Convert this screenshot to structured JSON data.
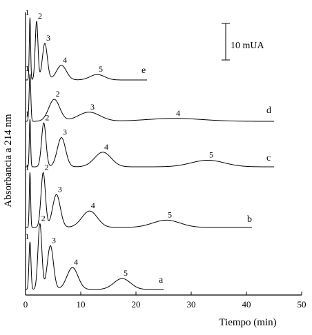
{
  "chart_data": {
    "type": "line",
    "title": "",
    "xlabel": "Tiempo (min)",
    "ylabel": "Absorbancia a 214 nm",
    "xlim": [
      0,
      50
    ],
    "xticks": [
      0,
      10,
      20,
      30,
      40,
      50
    ],
    "grid": false,
    "scale_bar": {
      "label": "10 mUA",
      "value_mAU": 10
    },
    "series": [
      {
        "name": "a",
        "end_time": 25,
        "peaks": [
          {
            "label": "1",
            "time": 0.8,
            "height_mAU": 13,
            "width": 0.18
          },
          {
            "label": "2",
            "time": 2.6,
            "height_mAU": 18,
            "width": 0.35
          },
          {
            "label": "3",
            "time": 4.5,
            "height_mAU": 12,
            "width": 0.55
          },
          {
            "label": "4",
            "time": 8.5,
            "height_mAU": 6,
            "width": 1.0
          },
          {
            "label": "5",
            "time": 17.5,
            "height_mAU": 3,
            "width": 1.5
          }
        ]
      },
      {
        "name": "b",
        "end_time": 41,
        "peaks": [
          {
            "label": "1",
            "time": 0.8,
            "height_mAU": 15,
            "width": 0.12
          },
          {
            "label": "2",
            "time": 3.2,
            "height_mAU": 15,
            "width": 0.4
          },
          {
            "label": "3",
            "time": 5.6,
            "height_mAU": 9,
            "width": 0.7
          },
          {
            "label": "4",
            "time": 11.6,
            "height_mAU": 4.5,
            "width": 1.4
          },
          {
            "label": "5",
            "time": 25.5,
            "height_mAU": 2,
            "width": 2.5
          }
        ]
      },
      {
        "name": "c",
        "end_time": 45,
        "peaks": [
          {
            "label": "1",
            "time": 0.8,
            "height_mAU": 13,
            "width": 0.12
          },
          {
            "label": "2",
            "time": 3.3,
            "height_mAU": 12,
            "width": 0.4
          },
          {
            "label": "3",
            "time": 6.5,
            "height_mAU": 8,
            "width": 0.75
          },
          {
            "label": "4",
            "time": 14.0,
            "height_mAU": 4,
            "width": 1.5
          },
          {
            "label": "5",
            "time": 33.0,
            "height_mAU": 1.8,
            "width": 3.0
          }
        ]
      },
      {
        "name": "d",
        "end_time": 45,
        "peaks": [
          {
            "label": "1",
            "time": 0.8,
            "height_mAU": 13,
            "width": 0.15
          },
          {
            "label": "2",
            "time": 5.2,
            "height_mAU": 6,
            "width": 1.0
          },
          {
            "label": "3",
            "time": 11.5,
            "height_mAU": 2.5,
            "width": 2.0
          },
          {
            "label": "4",
            "time": 27.0,
            "height_mAU": 0.8,
            "width": 5.0
          }
        ]
      },
      {
        "name": "e",
        "end_time": 22,
        "peaks": [
          {
            "label": "1",
            "time": 0.8,
            "height_mAU": 17,
            "width": 0.12
          },
          {
            "label": "2",
            "time": 2.0,
            "height_mAU": 16,
            "width": 0.25
          },
          {
            "label": "3",
            "time": 3.5,
            "height_mAU": 10,
            "width": 0.45
          },
          {
            "label": "4",
            "time": 6.5,
            "height_mAU": 4,
            "width": 0.9
          },
          {
            "label": "5",
            "time": 13.0,
            "height_mAU": 1.5,
            "width": 1.3
          }
        ]
      }
    ]
  }
}
